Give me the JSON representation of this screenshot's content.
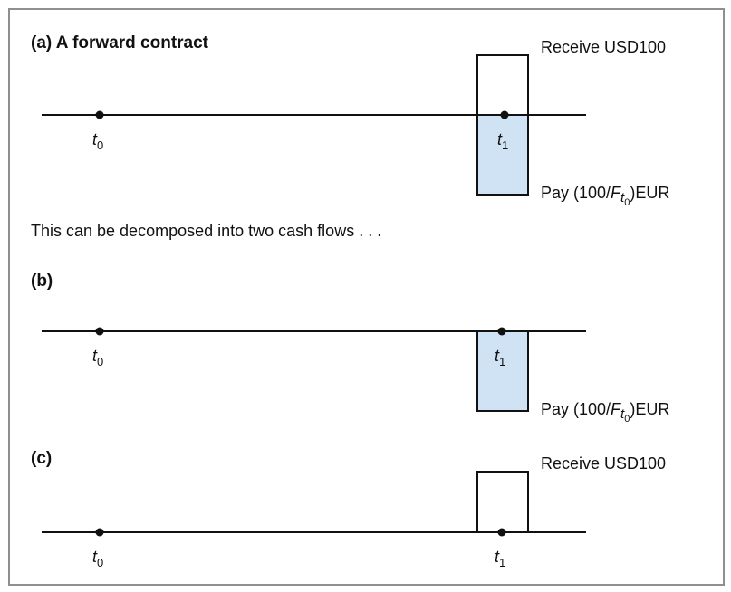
{
  "diagram": {
    "colors": {
      "pay_fill": "#cfe3f4",
      "receive_fill": "#ffffff",
      "border": "#8f8f8f"
    },
    "panel_a": {
      "title": "(a) A forward contract",
      "t0": {
        "base": "t",
        "sub": "0"
      },
      "t1": {
        "base": "t",
        "sub": "1"
      },
      "receive": "Receive USD100",
      "pay": {
        "prefix": "Pay (100/",
        "F": "F",
        "t": "t",
        "sub": "0",
        "suffix": ")EUR"
      }
    },
    "caption": "This can be decomposed into two cash flows . . .",
    "panel_b": {
      "title": "(b)",
      "t0": {
        "base": "t",
        "sub": "0"
      },
      "t1": {
        "base": "t",
        "sub": "1"
      },
      "pay": {
        "prefix": "Pay (100/",
        "F": "F",
        "t": "t",
        "sub": "0",
        "suffix": ")EUR"
      }
    },
    "panel_c": {
      "title": "(c)",
      "t0": {
        "base": "t",
        "sub": "0"
      },
      "t1": {
        "base": "t",
        "sub": "1"
      },
      "receive": "Receive USD100"
    }
  }
}
